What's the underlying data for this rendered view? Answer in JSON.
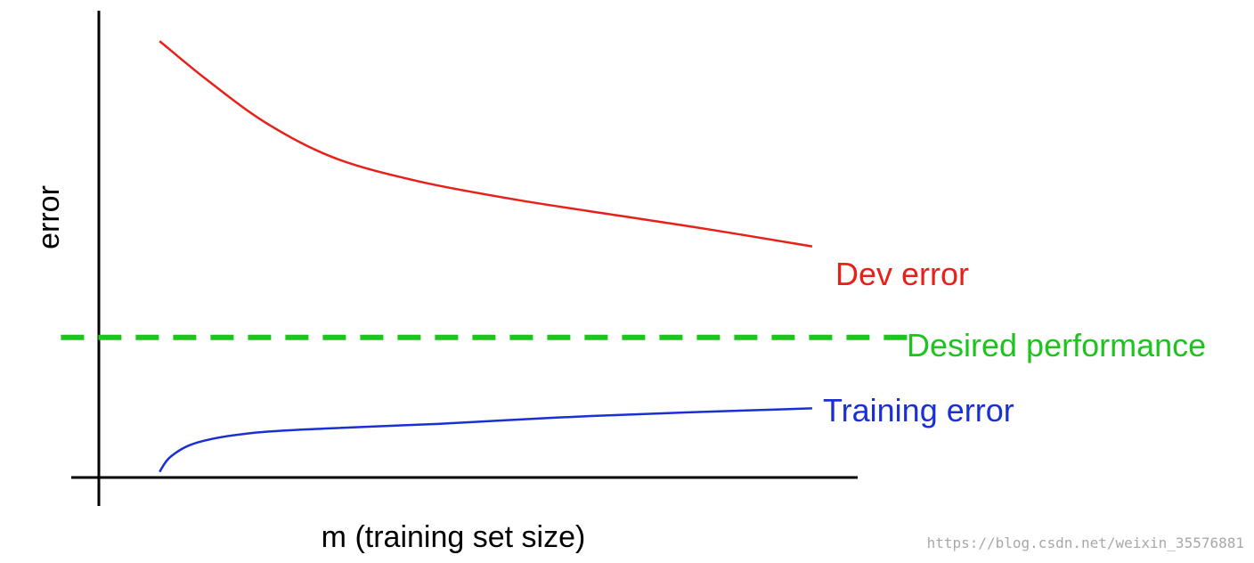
{
  "chart_data": {
    "type": "line",
    "title": "",
    "xlabel": "m (training set size)",
    "ylabel": "error",
    "xlim": [
      0,
      10
    ],
    "ylim": [
      0,
      10
    ],
    "grid": false,
    "series": [
      {
        "name": "Dev error",
        "color": "#e8201a",
        "x": [
          0.8,
          1.4,
          2.2,
          3.1,
          4.2,
          5.5,
          6.9,
          8.1,
          9.4
        ],
        "y": [
          9.35,
          8.55,
          7.6,
          6.85,
          6.35,
          5.95,
          5.6,
          5.3,
          4.95
        ]
      },
      {
        "name": "Desired performance",
        "color": "#1ec31e",
        "style": "dashed",
        "x": [
          -0.5,
          10.8
        ],
        "y": [
          3.0,
          3.0
        ]
      },
      {
        "name": "Training error",
        "color": "#1a2fd6",
        "x": [
          0.8,
          0.95,
          1.3,
          2.0,
          3.0,
          4.5,
          6.0,
          7.5,
          9.4
        ],
        "y": [
          0.12,
          0.45,
          0.75,
          0.95,
          1.05,
          1.15,
          1.28,
          1.38,
          1.48
        ]
      }
    ]
  },
  "watermark": "https://blog.csdn.net/weixin_35576881"
}
